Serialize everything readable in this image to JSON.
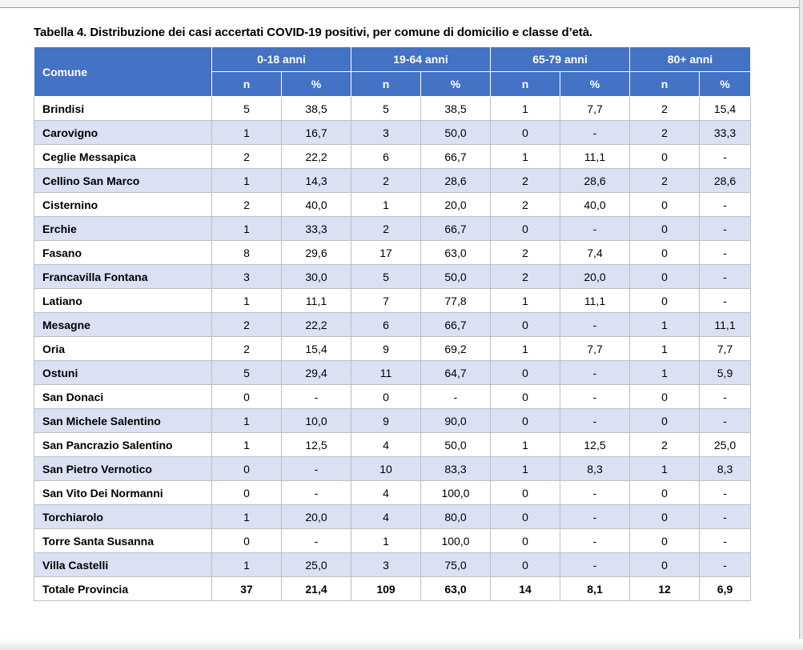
{
  "caption": "Tabella 4. Distribuzione dei casi accertati COVID-19 positivi, per comune di domicilio e classe d’età.",
  "header": {
    "comune": "Comune",
    "groups": [
      "0-18 anni",
      "19-64 anni",
      "65-79 anni",
      "80+ anni"
    ],
    "sub": [
      "n",
      "%",
      "n",
      "%",
      "n",
      "%",
      "n",
      "%"
    ]
  },
  "rows": [
    [
      "Brindisi",
      "5",
      "38,5",
      "5",
      "38,5",
      "1",
      "7,7",
      "2",
      "15,4"
    ],
    [
      "Carovigno",
      "1",
      "16,7",
      "3",
      "50,0",
      "0",
      "-",
      "2",
      "33,3"
    ],
    [
      "Ceglie Messapica",
      "2",
      "22,2",
      "6",
      "66,7",
      "1",
      "11,1",
      "0",
      "-"
    ],
    [
      "Cellino San Marco",
      "1",
      "14,3",
      "2",
      "28,6",
      "2",
      "28,6",
      "2",
      "28,6"
    ],
    [
      "Cisternino",
      "2",
      "40,0",
      "1",
      "20,0",
      "2",
      "40,0",
      "0",
      "-"
    ],
    [
      "Erchie",
      "1",
      "33,3",
      "2",
      "66,7",
      "0",
      "-",
      "0",
      "-"
    ],
    [
      "Fasano",
      "8",
      "29,6",
      "17",
      "63,0",
      "2",
      "7,4",
      "0",
      "-"
    ],
    [
      "Francavilla Fontana",
      "3",
      "30,0",
      "5",
      "50,0",
      "2",
      "20,0",
      "0",
      "-"
    ],
    [
      "Latiano",
      "1",
      "11,1",
      "7",
      "77,8",
      "1",
      "11,1",
      "0",
      "-"
    ],
    [
      "Mesagne",
      "2",
      "22,2",
      "6",
      "66,7",
      "0",
      "-",
      "1",
      "11,1"
    ],
    [
      "Oria",
      "2",
      "15,4",
      "9",
      "69,2",
      "1",
      "7,7",
      "1",
      "7,7"
    ],
    [
      "Ostuni",
      "5",
      "29,4",
      "11",
      "64,7",
      "0",
      "-",
      "1",
      "5,9"
    ],
    [
      "San Donaci",
      "0",
      "-",
      "0",
      "-",
      "0",
      "-",
      "0",
      "-"
    ],
    [
      "San Michele Salentino",
      "1",
      "10,0",
      "9",
      "90,0",
      "0",
      "-",
      "0",
      "-"
    ],
    [
      "San Pancrazio Salentino",
      "1",
      "12,5",
      "4",
      "50,0",
      "1",
      "12,5",
      "2",
      "25,0"
    ],
    [
      "San Pietro Vernotico",
      "0",
      "-",
      "10",
      "83,3",
      "1",
      "8,3",
      "1",
      "8,3"
    ],
    [
      "San Vito Dei Normanni",
      "0",
      "-",
      "4",
      "100,0",
      "0",
      "-",
      "0",
      "-"
    ],
    [
      "Torchiarolo",
      "1",
      "20,0",
      "4",
      "80,0",
      "0",
      "-",
      "0",
      "-"
    ],
    [
      "Torre Santa Susanna",
      "0",
      "-",
      "1",
      "100,0",
      "0",
      "-",
      "0",
      "-"
    ],
    [
      "Villa Castelli",
      "1",
      "25,0",
      "3",
      "75,0",
      "0",
      "-",
      "0",
      "-"
    ]
  ],
  "total": [
    "Totale Provincia",
    "37",
    "21,4",
    "109",
    "63,0",
    "14",
    "8,1",
    "12",
    "6,9"
  ],
  "colors": {
    "header_bg": "#4472c4",
    "header_text": "#ffffff",
    "band_bg": "#d9e1f2",
    "border": "#bfbfbf"
  }
}
